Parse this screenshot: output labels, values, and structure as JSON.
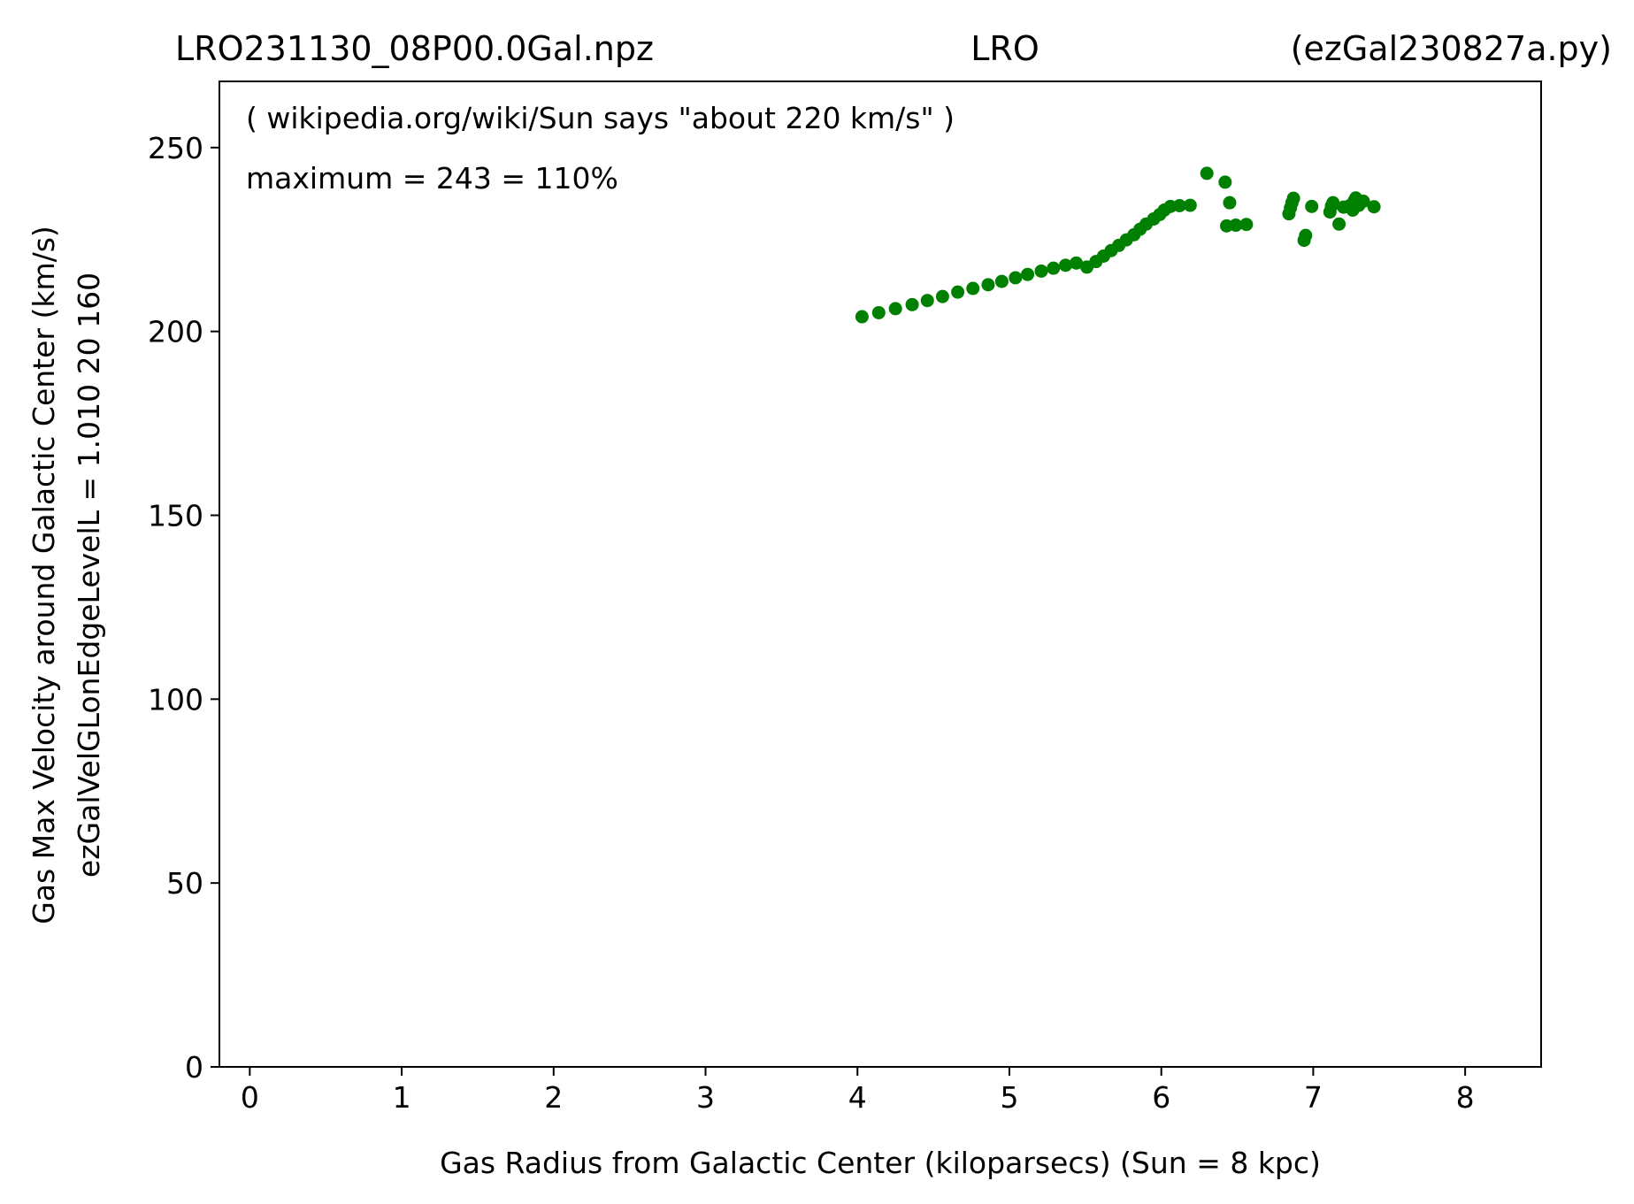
{
  "chart_data": {
    "type": "scatter",
    "title_left": "LRO231130_08P00.0Gal.npz",
    "title_center": "LRO",
    "title_right": "(ezGal230827a.py)",
    "xlabel": "Gas Radius from Galactic Center (kiloparsecs)  (Sun = 8 kpc)",
    "ylabel_line1": "Gas Max Velocity around Galactic Center (km/s)",
    "ylabel_line2": "ezGalVelGLonEdgeLevelL = 1.010  20  160",
    "annotations": [
      "( wikipedia.org/wiki/Sun says \"about 220 km/s\" )",
      "maximum = 243 = 110%"
    ],
    "xlim": [
      -0.2,
      8.5
    ],
    "ylim": [
      0,
      268
    ],
    "xticks": [
      0,
      1,
      2,
      3,
      4,
      5,
      6,
      7,
      8
    ],
    "yticks": [
      0,
      50,
      100,
      150,
      200,
      250
    ],
    "grid": false,
    "marker_color": "#008000",
    "series": [
      {
        "points": [
          [
            4.03,
            204.0
          ],
          [
            4.14,
            205.1
          ],
          [
            4.25,
            206.2
          ],
          [
            4.36,
            207.3
          ],
          [
            4.46,
            208.4
          ],
          [
            4.56,
            209.5
          ],
          [
            4.66,
            210.7
          ],
          [
            4.76,
            211.7
          ],
          [
            4.86,
            212.7
          ],
          [
            4.95,
            213.6
          ],
          [
            5.04,
            214.6
          ],
          [
            5.12,
            215.5
          ],
          [
            5.21,
            216.4
          ],
          [
            5.29,
            217.2
          ],
          [
            5.37,
            218.0
          ],
          [
            5.44,
            218.6
          ],
          [
            5.51,
            217.5
          ],
          [
            5.57,
            219.0
          ],
          [
            5.62,
            220.5
          ],
          [
            5.67,
            222.0
          ],
          [
            5.72,
            223.4
          ],
          [
            5.77,
            224.9
          ],
          [
            5.82,
            226.3
          ],
          [
            5.86,
            227.8
          ],
          [
            5.9,
            229.2
          ],
          [
            5.95,
            230.6
          ],
          [
            5.99,
            231.8
          ],
          [
            6.02,
            233.0
          ],
          [
            6.06,
            234.0
          ],
          [
            6.12,
            234.2
          ],
          [
            6.19,
            234.3
          ],
          [
            6.3,
            243.0
          ],
          [
            6.42,
            240.6
          ],
          [
            6.45,
            235.0
          ],
          [
            6.43,
            228.7
          ],
          [
            6.49,
            228.9
          ],
          [
            6.56,
            229.1
          ],
          [
            6.84,
            232.0
          ],
          [
            6.85,
            233.6
          ],
          [
            6.86,
            235.0
          ],
          [
            6.87,
            236.2
          ],
          [
            6.94,
            224.8
          ],
          [
            6.95,
            226.1
          ],
          [
            6.99,
            234.0
          ],
          [
            7.11,
            232.5
          ],
          [
            7.12,
            234.1
          ],
          [
            7.13,
            235.0
          ],
          [
            7.17,
            229.2
          ],
          [
            7.2,
            233.8
          ],
          [
            7.24,
            234.2
          ],
          [
            7.26,
            233.0
          ],
          [
            7.27,
            235.5
          ],
          [
            7.28,
            236.3
          ],
          [
            7.3,
            234.3
          ],
          [
            7.33,
            235.4
          ],
          [
            7.4,
            233.9
          ]
        ]
      }
    ]
  }
}
